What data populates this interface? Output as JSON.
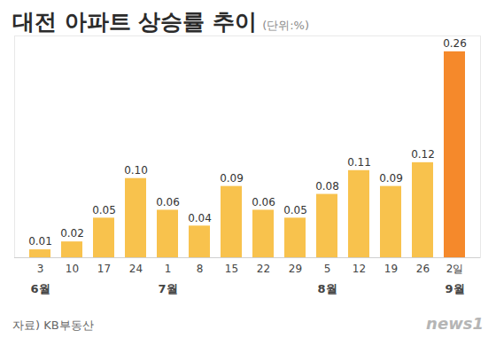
{
  "chart_data": {
    "type": "bar",
    "title": "대전 아파트 상승률 추이",
    "subtitle": "(단위:%)",
    "categories": [
      "3",
      "10",
      "17",
      "24",
      "1",
      "8",
      "15",
      "22",
      "29",
      "5",
      "12",
      "19",
      "26",
      "2일"
    ],
    "months": [
      "6월",
      "6월",
      "6월",
      "6월",
      "7월",
      "7월",
      "7월",
      "7월",
      "7월",
      "8월",
      "8월",
      "8월",
      "8월",
      "9월"
    ],
    "values": [
      0.01,
      0.02,
      0.05,
      0.1,
      0.06,
      0.04,
      0.09,
      0.06,
      0.05,
      0.08,
      0.11,
      0.09,
      0.12,
      0.26
    ],
    "value_labels": [
      "0.01",
      "0.02",
      "0.05",
      "0.10",
      "0.06",
      "0.04",
      "0.09",
      "0.06",
      "0.05",
      "0.08",
      "0.11",
      "0.09",
      "0.12",
      "0.26"
    ],
    "colors": [
      "#f8c24d",
      "#f8c24d",
      "#f8c24d",
      "#f8c24d",
      "#f8c24d",
      "#f8c24d",
      "#f8c24d",
      "#f8c24d",
      "#f8c24d",
      "#f8c24d",
      "#f8c24d",
      "#f8c24d",
      "#f8c24d",
      "#f5892b"
    ],
    "ylim": [
      0,
      0.28
    ],
    "yticks": [
      0
    ],
    "grid": false,
    "data_labels": true,
    "tick_labels": "x",
    "source": "자료) KB부동산",
    "credit": "news1"
  }
}
